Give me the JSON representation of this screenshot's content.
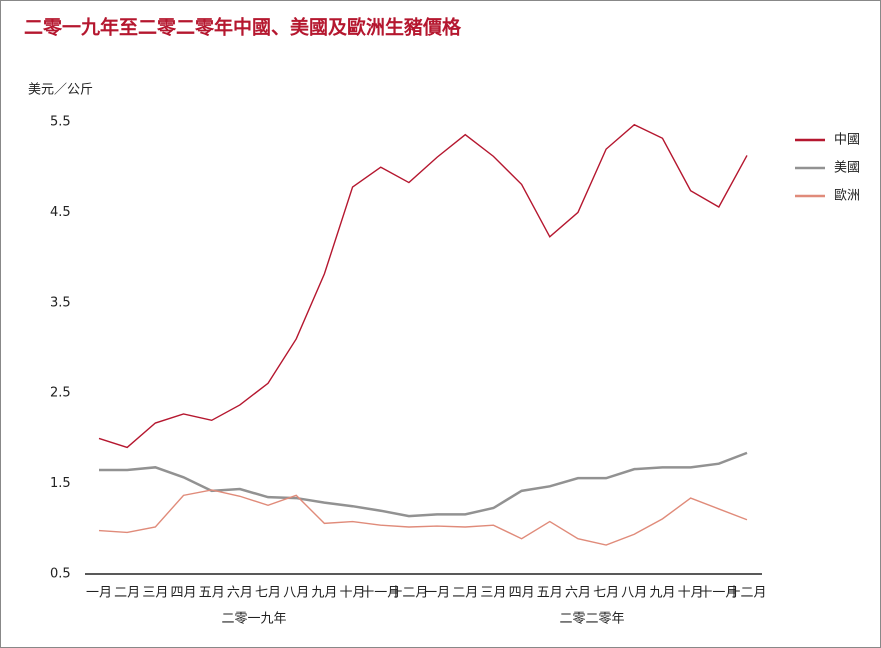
{
  "chart_data": {
    "type": "line",
    "title": "二零一九年至二零二零年中國、美國及歐洲生豬價格",
    "y_label": "美元／公斤",
    "categories": [
      "一月",
      "二月",
      "三月",
      "四月",
      "五月",
      "六月",
      "七月",
      "八月",
      "九月",
      "十月",
      "十一月",
      "十二月",
      "一月",
      "二月",
      "三月",
      "四月",
      "五月",
      "六月",
      "七月",
      "八月",
      "九月",
      "十月",
      "十一月",
      "十二月"
    ],
    "groups": [
      {
        "label": "二零一九年",
        "span": [
          0,
          11
        ]
      },
      {
        "label": "二零二零年",
        "span": [
          12,
          23
        ]
      }
    ],
    "series": [
      {
        "name": "中國",
        "color": "#b5172f",
        "values": [
          2.0,
          1.9,
          2.17,
          2.27,
          2.2,
          2.37,
          2.61,
          3.1,
          3.82,
          4.78,
          5.0,
          4.83,
          5.11,
          5.36,
          5.12,
          4.81,
          4.23,
          4.5,
          5.2,
          5.47,
          5.32,
          4.74,
          4.56,
          5.13
        ]
      },
      {
        "name": "美國",
        "color": "#929292",
        "values": [
          1.65,
          1.65,
          1.68,
          1.57,
          1.42,
          1.44,
          1.35,
          1.34,
          1.29,
          1.25,
          1.2,
          1.14,
          1.16,
          1.16,
          1.23,
          1.42,
          1.47,
          1.56,
          1.56,
          1.66,
          1.68,
          1.68,
          1.72,
          1.84
        ]
      },
      {
        "name": "歐洲",
        "color": "#e08b7a",
        "values": [
          0.98,
          0.96,
          1.02,
          1.37,
          1.43,
          1.36,
          1.26,
          1.37,
          1.06,
          1.08,
          1.04,
          1.02,
          1.03,
          1.02,
          1.04,
          0.89,
          1.08,
          0.89,
          0.82,
          0.94,
          1.11,
          1.34,
          1.22,
          1.1
        ]
      }
    ],
    "ylim": [
      0.5,
      5.5
    ],
    "yticks": [
      0.5,
      1.5,
      2.5,
      3.5,
      4.5,
      5.5
    ],
    "grid": false,
    "legend": "right"
  }
}
